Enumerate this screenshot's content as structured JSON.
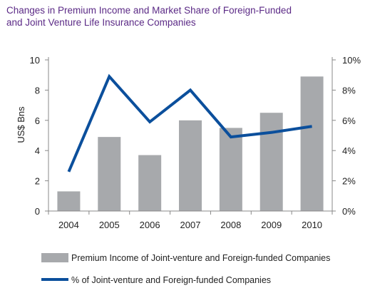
{
  "chart_data": {
    "type": "bar+line",
    "title_lines": [
      "Changes in Premium Income and Market Share of Foreign-Funded",
      "and Joint Venture Life Insurance Companies"
    ],
    "ylabel": "US$ Bns",
    "categories": [
      "2004",
      "2005",
      "2006",
      "2007",
      "2008",
      "2009",
      "2010"
    ],
    "left_axis": {
      "min": 0,
      "max": 10,
      "ticks": [
        "0",
        "2",
        "4",
        "6",
        "8",
        "10"
      ]
    },
    "right_axis": {
      "min": 0,
      "max": 10,
      "ticks": [
        "0%",
        "2%",
        "4%",
        "6%",
        "8%",
        "10%"
      ]
    },
    "series": [
      {
        "name": "Premium Income of Joint-venture and Foreign-funded Companies",
        "type": "bar",
        "axis": "left",
        "values": [
          1.3,
          4.9,
          3.7,
          6.0,
          5.5,
          6.5,
          8.9
        ]
      },
      {
        "name": "% of Joint-venture and Foreign-funded Companies",
        "type": "line",
        "axis": "right",
        "values": [
          2.6,
          8.9,
          5.9,
          8.0,
          4.9,
          5.2,
          5.6
        ]
      }
    ],
    "colors": {
      "title": "#5b2a86",
      "bar": "#a7a9ac",
      "line": "#0b4f9c",
      "axis": "#888888"
    },
    "grid": false,
    "legend_position": "bottom"
  }
}
